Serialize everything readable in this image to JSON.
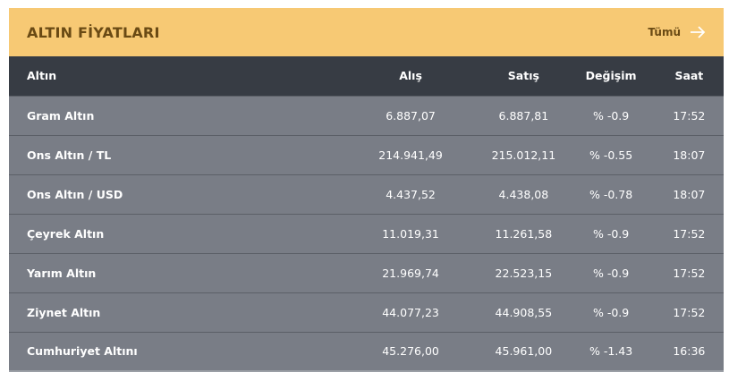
{
  "header": {
    "title": "ALTIN FİYATLARI",
    "link": "Tümü"
  },
  "table": {
    "columns": [
      "Altın",
      "Alış",
      "Satış",
      "Değişim",
      "Saat"
    ],
    "rows": [
      [
        "Gram Altın",
        "6.887,07",
        "6.887,81",
        "% -0.9",
        "17:52"
      ],
      [
        "Ons Altın / TL",
        "214.941,49",
        "215.012,11",
        "% -0.55",
        "18:07"
      ],
      [
        "Ons Altın / USD",
        "4.437,52",
        "4.438,08",
        "% -0.78",
        "18:07"
      ],
      [
        "Çeyrek Altın",
        "11.019,31",
        "11.261,58",
        "% -0.9",
        "17:52"
      ],
      [
        "Yarım Altın",
        "21.969,74",
        "22.523,15",
        "% -0.9",
        "17:52"
      ],
      [
        "Ziynet Altın",
        "44.077,23",
        "44.908,55",
        "% -0.9",
        "17:52"
      ],
      [
        "Cumhuriyet Altını",
        "45.276,00",
        "45.961,00",
        "% -1.43",
        "16:36"
      ]
    ]
  }
}
